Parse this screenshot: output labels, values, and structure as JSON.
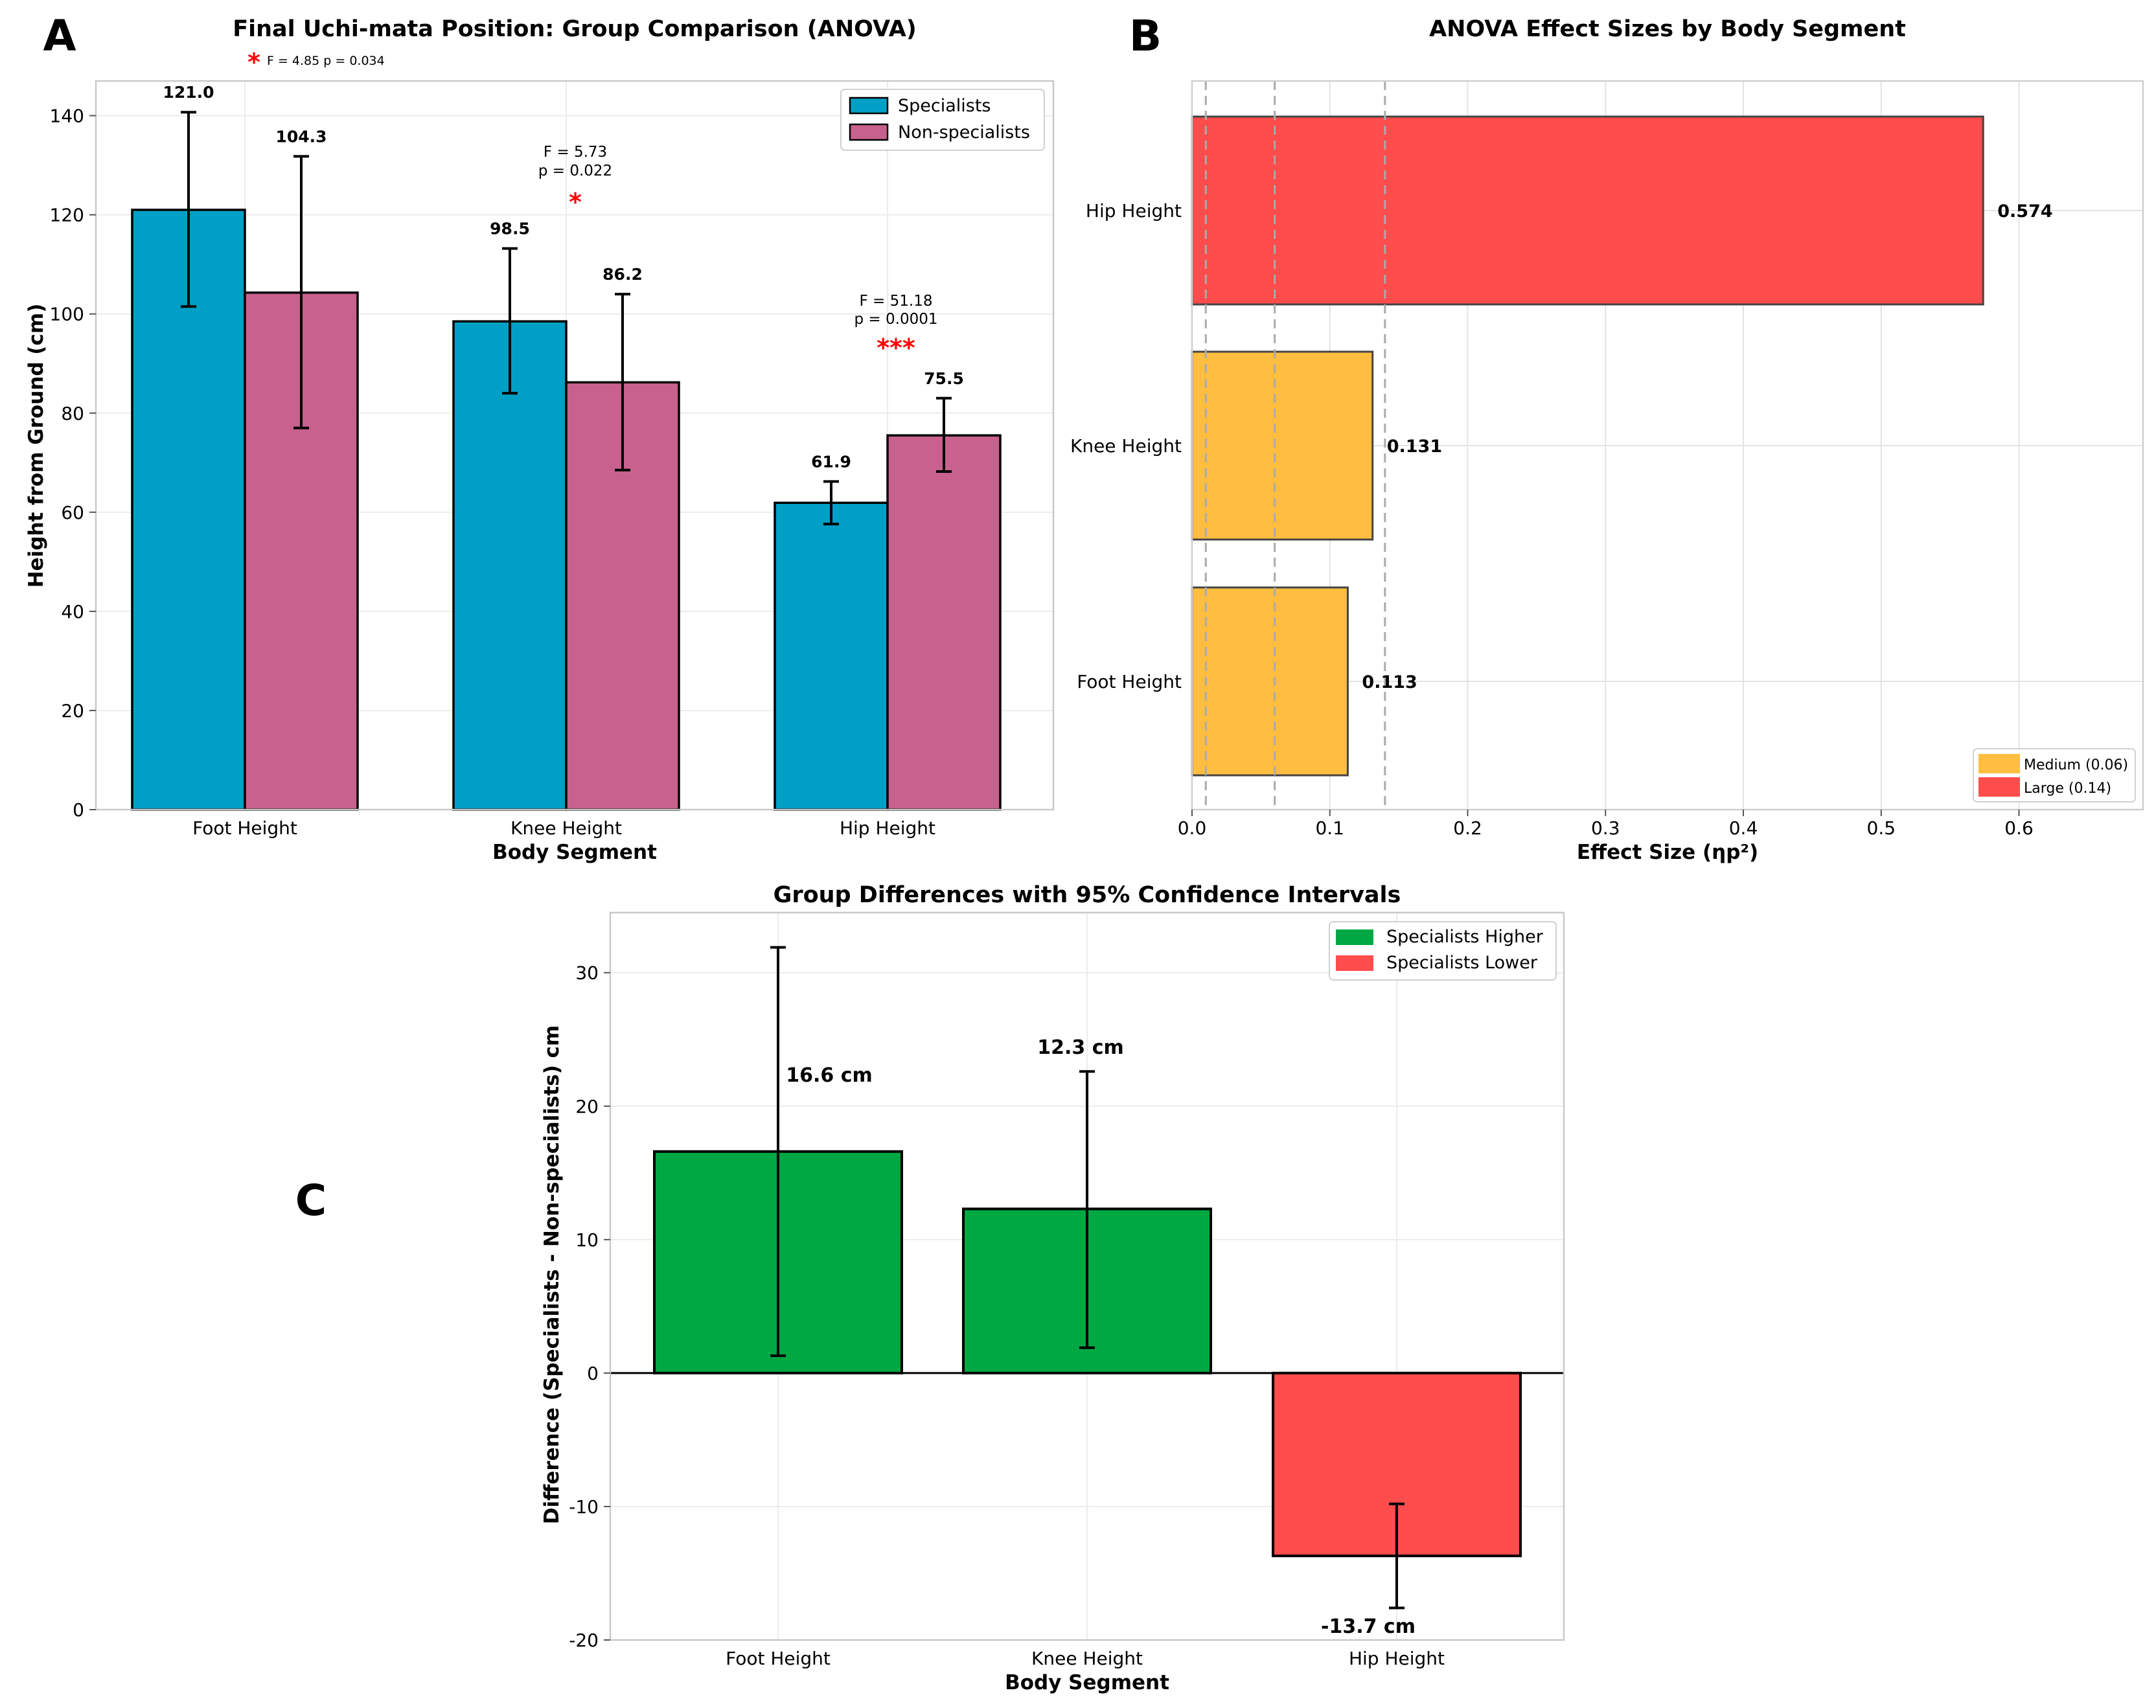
{
  "panel_letters": [
    "A",
    "B",
    "C"
  ],
  "colors": {
    "specialists": "#00A0C6",
    "non_specialists": "#C8618E",
    "large": "#FF4C4C",
    "medium": "#FFBE40",
    "higher": "#00A843",
    "lower": "#FF4C4C",
    "significance": "#FF0000"
  },
  "chart_data": [
    {
      "panel": "A",
      "type": "bar",
      "title": "Final Uchi-mata Position: Group Comparison (ANOVA)",
      "xlabel": "Body Segment",
      "ylabel": "Height from Ground (cm)",
      "ylim": [
        0,
        147
      ],
      "yticks": [
        0,
        20,
        40,
        60,
        80,
        100,
        120,
        140
      ],
      "categories": [
        "Foot Height",
        "Knee Height",
        "Hip Height"
      ],
      "series": [
        {
          "name": "Specialists",
          "values": [
            121.0,
            98.5,
            61.9
          ],
          "err_low": [
            101.5,
            84.0,
            57.6
          ],
          "err_high": [
            140.7,
            113.2,
            66.2
          ]
        },
        {
          "name": "Non-specialists",
          "values": [
            104.3,
            86.2,
            75.5
          ],
          "err_low": [
            77.0,
            68.5,
            68.2
          ],
          "err_high": [
            131.8,
            104.0,
            83.0
          ]
        }
      ],
      "value_labels": [
        [
          "121.0",
          "98.5",
          "61.9"
        ],
        [
          "104.3",
          "86.2",
          "75.5"
        ]
      ],
      "legend": [
        "Specialists",
        "Non-specialists"
      ],
      "legend_position": "top-right",
      "annotations": [
        {
          "category": "Foot Height",
          "stars": "*",
          "text": "F = 4.85 p = 0.034"
        },
        {
          "category": "Knee Height",
          "stars": "*",
          "line1": "F = 5.73",
          "line2": "p = 0.022"
        },
        {
          "category": "Hip Height",
          "stars": "***",
          "line1": "F = 51.18",
          "line2": "p = 0.0001"
        }
      ]
    },
    {
      "panel": "B",
      "type": "bar",
      "orientation": "horizontal",
      "title": "ANOVA Effect Sizes by Body Segment",
      "xlabel": "Effect Size (ηp²)",
      "ylabel": "",
      "xlim": [
        0,
        0.69
      ],
      "xticks": [
        0.0,
        0.1,
        0.2,
        0.3,
        0.4,
        0.5,
        0.6
      ],
      "categories": [
        "Hip Height",
        "Knee Height",
        "Foot Height"
      ],
      "values": [
        0.574,
        0.131,
        0.113
      ],
      "value_labels": [
        "0.574",
        "0.131",
        "0.113"
      ],
      "bar_classes": [
        "large",
        "medium",
        "medium"
      ],
      "reference_lines": [
        0.01,
        0.06,
        0.14
      ],
      "legend": [
        "Medium (0.06)",
        "Large (0.14)"
      ],
      "legend_position": "bottom-right"
    },
    {
      "panel": "C",
      "type": "bar",
      "title": "Group Differences with 95% Confidence Intervals",
      "xlabel": "Body Segment",
      "ylabel": "Difference (Specialists - Non-specialists) cm",
      "ylim": [
        -20,
        34.5
      ],
      "yticks": [
        -20,
        -10,
        0,
        10,
        20,
        30
      ],
      "categories": [
        "Foot Height",
        "Knee Height",
        "Hip Height"
      ],
      "values": [
        16.6,
        12.3,
        -13.7
      ],
      "ci_low": [
        1.3,
        1.9,
        -17.6
      ],
      "ci_high": [
        31.9,
        22.6,
        -9.8
      ],
      "value_labels": [
        "16.6 cm",
        "12.3 cm",
        "-13.7 cm"
      ],
      "legend": [
        "Specialists Higher",
        "Specialists Lower"
      ],
      "legend_position": "top-right"
    }
  ]
}
